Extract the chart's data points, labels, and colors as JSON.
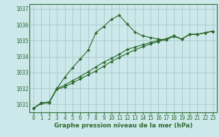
{
  "title": "Graphe pression niveau de la mer (hPa)",
  "bg_color": "#cce8ea",
  "grid_color": "#aacccc",
  "line_color": "#2d6a2d",
  "xlim": [
    -0.5,
    23.5
  ],
  "ylim": [
    1030.5,
    1037.3
  ],
  "yticks": [
    1031,
    1032,
    1033,
    1034,
    1035,
    1036,
    1037
  ],
  "xticks": [
    0,
    1,
    2,
    3,
    4,
    5,
    6,
    7,
    8,
    9,
    10,
    11,
    12,
    13,
    14,
    15,
    16,
    17,
    18,
    19,
    20,
    21,
    22,
    23
  ],
  "series1": {
    "x": [
      0,
      1,
      2,
      3,
      4,
      5,
      6,
      7,
      8,
      9,
      10,
      11,
      12,
      13,
      14,
      15,
      16,
      17,
      18,
      19,
      20,
      21,
      22,
      23
    ],
    "y": [
      1030.75,
      1031.1,
      1031.1,
      1032.0,
      1032.7,
      1033.3,
      1033.85,
      1034.4,
      1035.5,
      1035.9,
      1036.35,
      1036.6,
      1036.05,
      1035.55,
      1035.3,
      1035.2,
      1035.1,
      1035.05,
      1035.3,
      1035.1,
      1035.4,
      1035.4,
      1035.5,
      1035.6
    ]
  },
  "series2": {
    "x": [
      0,
      1,
      2,
      3,
      4,
      5,
      6,
      7,
      8,
      9,
      10,
      11,
      12,
      13,
      14,
      15,
      16,
      17,
      18,
      19,
      20,
      21,
      22,
      23
    ],
    "y": [
      1030.75,
      1031.1,
      1031.15,
      1032.0,
      1032.2,
      1032.5,
      1032.75,
      1033.05,
      1033.35,
      1033.65,
      1033.9,
      1034.15,
      1034.45,
      1034.6,
      1034.75,
      1034.88,
      1035.02,
      1035.12,
      1035.32,
      1035.1,
      1035.4,
      1035.4,
      1035.5,
      1035.6
    ]
  },
  "series3": {
    "x": [
      0,
      1,
      2,
      3,
      4,
      5,
      6,
      7,
      8,
      9,
      10,
      11,
      12,
      13,
      14,
      15,
      16,
      17,
      18,
      19,
      20,
      21,
      22,
      23
    ],
    "y": [
      1030.75,
      1031.05,
      1031.1,
      1031.95,
      1032.1,
      1032.35,
      1032.6,
      1032.85,
      1033.1,
      1033.4,
      1033.7,
      1033.95,
      1034.2,
      1034.42,
      1034.62,
      1034.8,
      1034.95,
      1035.08,
      1035.28,
      1035.1,
      1035.4,
      1035.4,
      1035.5,
      1035.6
    ]
  },
  "title_fontsize": 6.5,
  "tick_fontsize": 5.5
}
